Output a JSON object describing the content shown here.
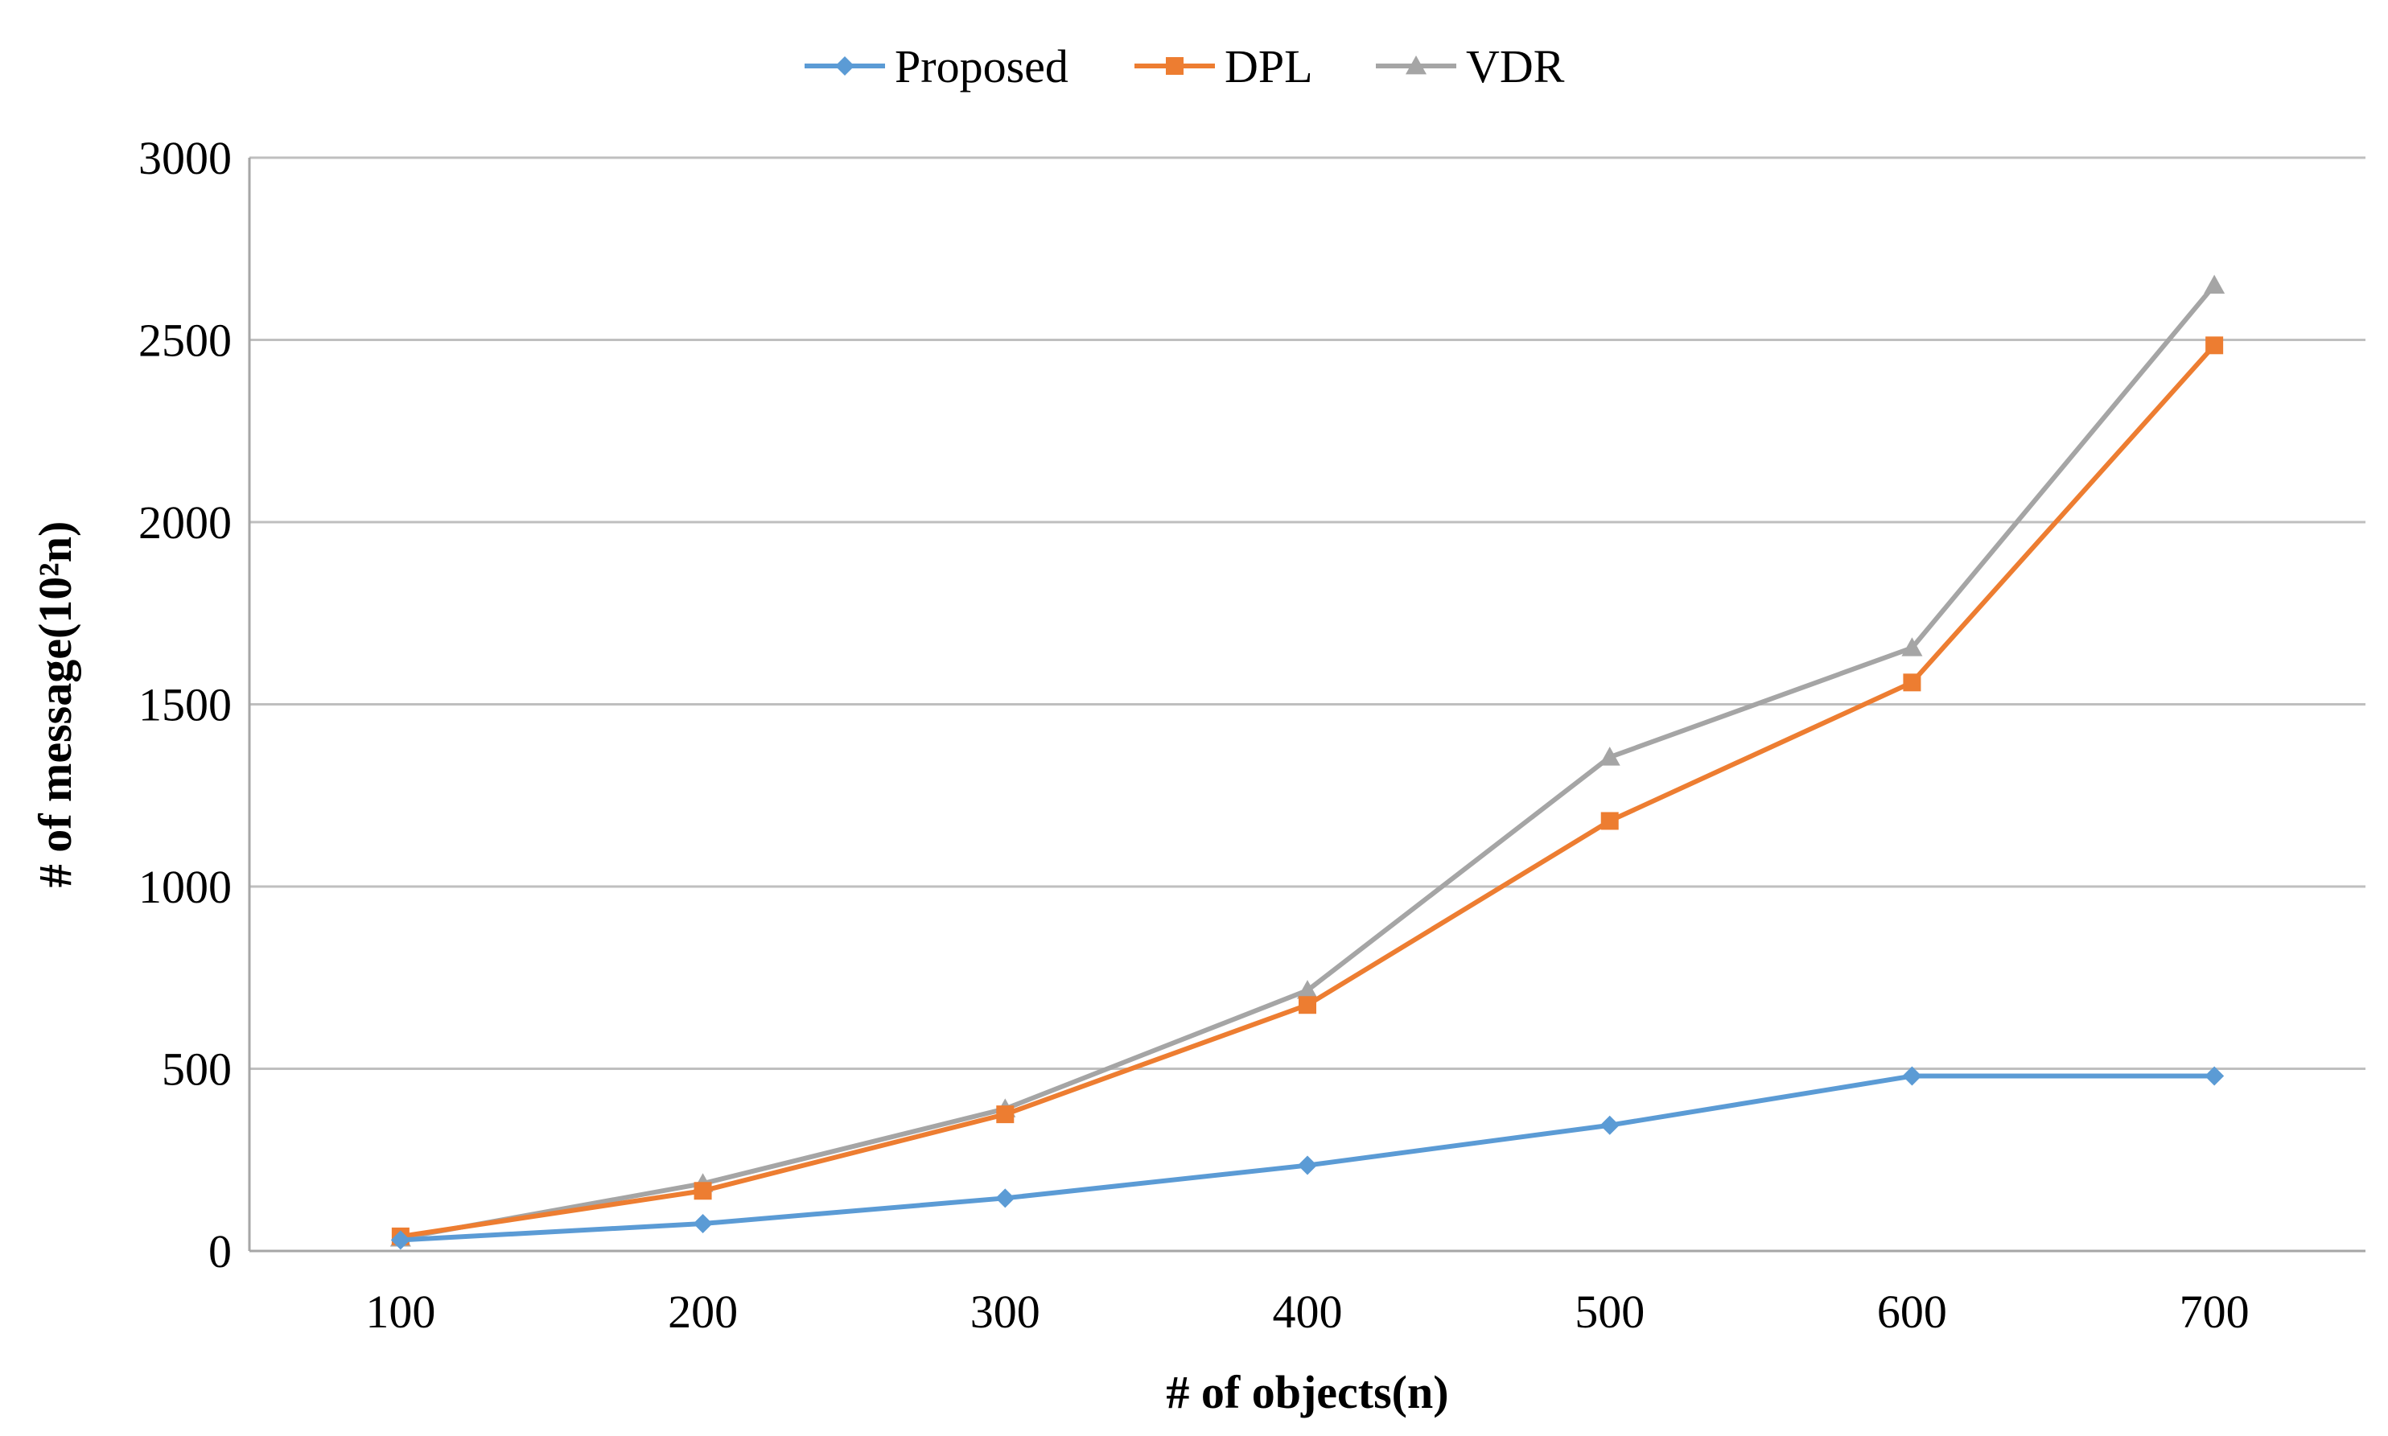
{
  "chart_data": {
    "type": "line",
    "title": "",
    "xlabel": "# of objects(n)",
    "ylabel": "# of message(10²n)",
    "categories": [
      "100",
      "200",
      "300",
      "400",
      "500",
      "600",
      "700"
    ],
    "x": [
      100,
      200,
      300,
      400,
      500,
      600,
      700
    ],
    "ylim": [
      0,
      3000
    ],
    "yticks": [
      0,
      500,
      1000,
      1500,
      2000,
      2500,
      3000
    ],
    "grid": true,
    "legend_position": "top-center",
    "series": [
      {
        "name": "Proposed",
        "color": "#5b9bd5",
        "marker": "diamond",
        "values": [
          30,
          75,
          145,
          235,
          345,
          480,
          480
        ]
      },
      {
        "name": "DPL",
        "color": "#ed7d31",
        "marker": "square",
        "values": [
          40,
          165,
          375,
          675,
          1180,
          1560,
          2485
        ]
      },
      {
        "name": "VDR",
        "color": "#a5a5a5",
        "marker": "triangle",
        "values": [
          35,
          185,
          390,
          715,
          1355,
          1655,
          2650
        ]
      }
    ]
  }
}
